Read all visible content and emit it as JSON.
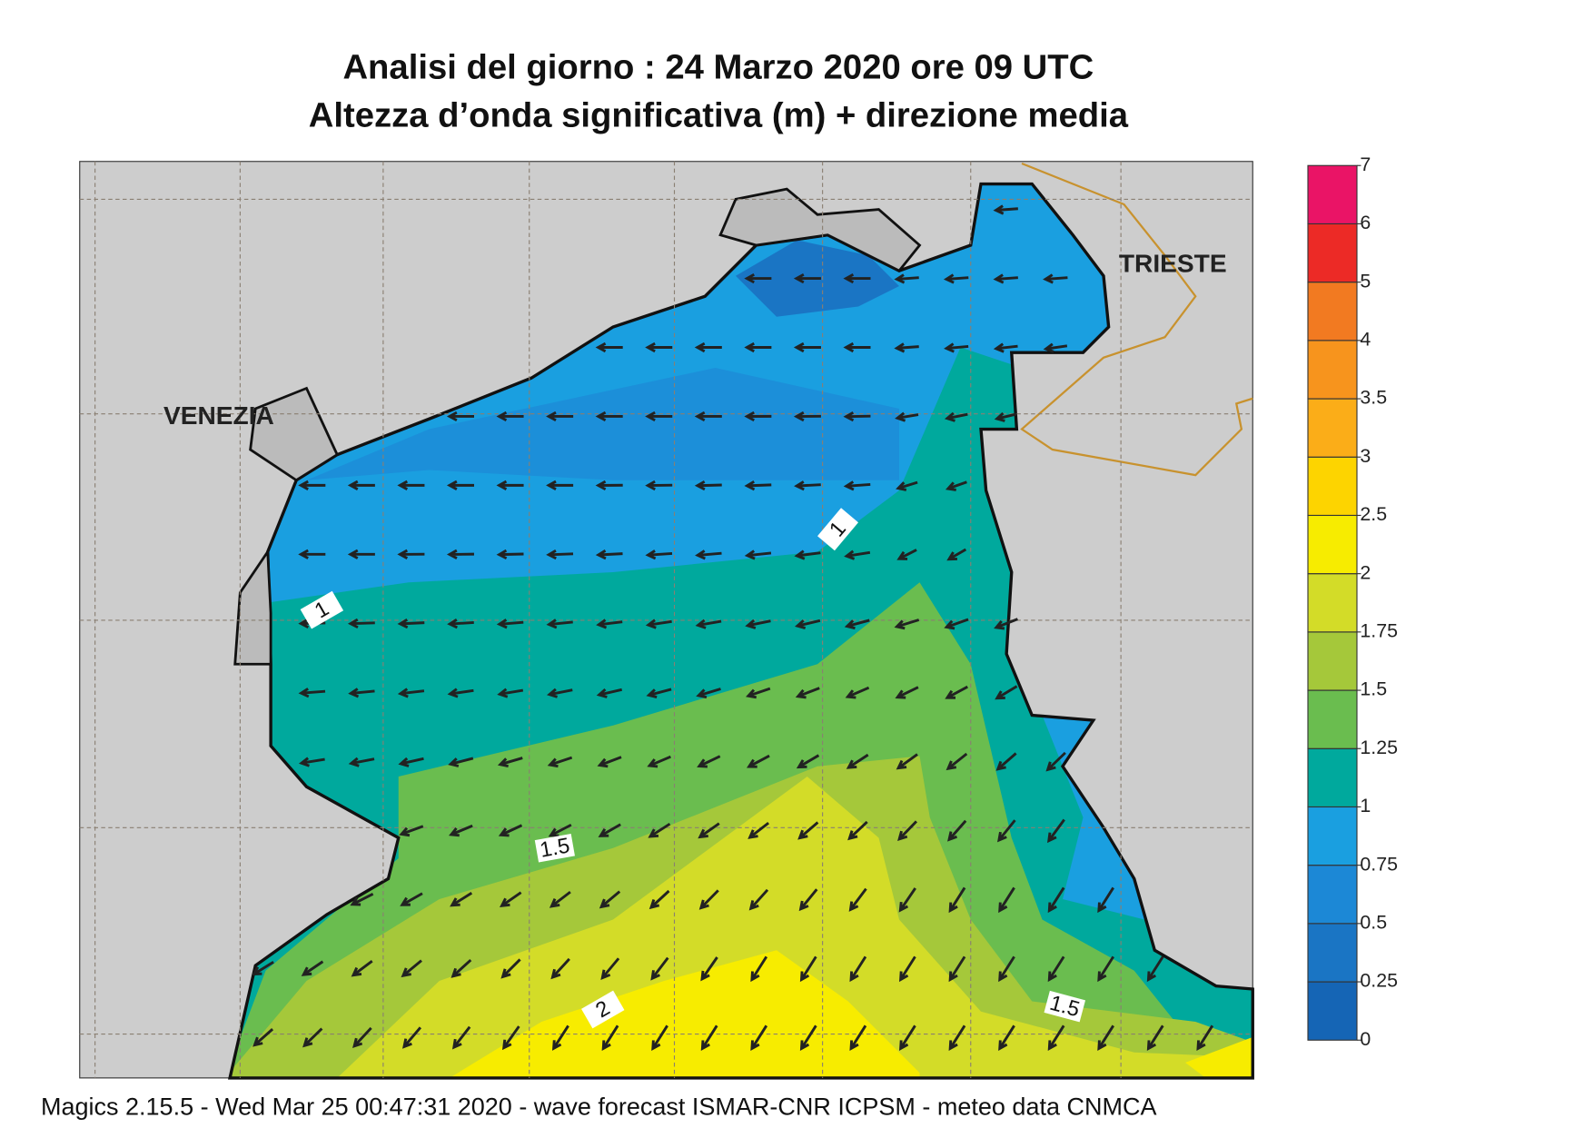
{
  "title": [
    "Analisi del giorno :  24   Marzo   2020   ore 09 UTC",
    "Altezza d’onda significativa (m) + direzione media"
  ],
  "places": [
    "VENEZIA",
    "TRIESTE"
  ],
  "legend": {
    "ticks": [
      0,
      0.25,
      0.5,
      0.75,
      1,
      1.25,
      1.5,
      1.75,
      2,
      2.5,
      3,
      3.5,
      4,
      5,
      6,
      7
    ],
    "colors": [
      "#1565b5",
      "#1a75c4",
      "#1c88d6",
      "#1a9fe0",
      "#00a99d",
      "#6abd4f",
      "#a5c83a",
      "#d3dc28",
      "#f7ec00",
      "#fdd400",
      "#fbad18",
      "#f7941d",
      "#f27a21",
      "#ec2a26",
      "#ea1466"
    ]
  },
  "contour_labels": [
    "1",
    "1",
    "1.5",
    "2",
    "1.5"
  ],
  "footer": "Magics 2.15.5 - Wed Mar 25 00:47:31 2020 - wave forecast  ISMAR-CNR  ICPSM - meteo data   CNMCA"
}
